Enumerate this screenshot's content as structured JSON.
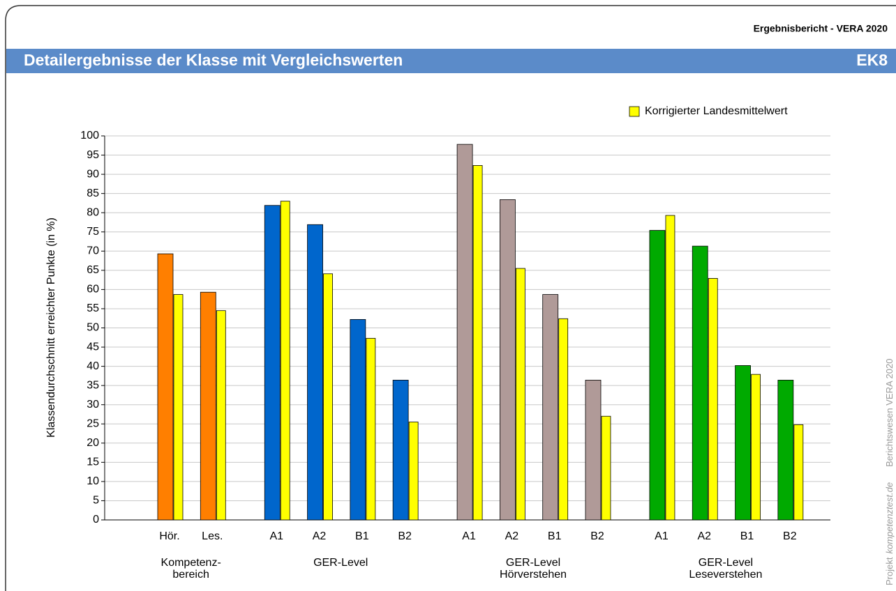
{
  "header": {
    "report": "Ergebnisbericht - VERA 2020",
    "title": "Detailergebnisse der Klasse mit Vergleichswerten",
    "code": "EK8"
  },
  "side": {
    "project": "Projekt",
    "site": "kompetenztest.de",
    "system": "Berichtswesen VERA 2020"
  },
  "chart_data": {
    "type": "bar",
    "y_label": "Klassendurchschnitt erreichter Punkte (in %)",
    "ylim": [
      0,
      100
    ],
    "yticks": [
      0,
      5,
      10,
      15,
      20,
      25,
      30,
      35,
      40,
      45,
      50,
      55,
      60,
      65,
      70,
      75,
      80,
      85,
      90,
      95,
      100
    ],
    "grid": true,
    "legend": "top-right",
    "reference": {
      "name": "Korrigierter Landesmittelwert",
      "color": "#ffff00"
    },
    "groups": [
      {
        "label": [
          "Kompetenz-",
          "bereich"
        ],
        "color": "#ff7f00",
        "categories": [
          "Hör.",
          "Les."
        ],
        "values": [
          69.3,
          59.3
        ],
        "reference": [
          58.7,
          54.5
        ]
      },
      {
        "label": [
          "GER-Level"
        ],
        "color": "#0066cc",
        "categories": [
          "A1",
          "A2",
          "B1",
          "B2"
        ],
        "values": [
          81.9,
          76.9,
          52.2,
          36.4
        ],
        "reference": [
          83.0,
          64.1,
          47.3,
          25.5
        ]
      },
      {
        "label": [
          "GER-Level",
          "Hörverstehen"
        ],
        "color": "#b09a98",
        "categories": [
          "A1",
          "A2",
          "B1",
          "B2"
        ],
        "values": [
          97.8,
          83.4,
          58.7,
          36.4
        ],
        "reference": [
          92.3,
          65.5,
          52.4,
          27.0
        ]
      },
      {
        "label": [
          "GER-Level",
          "Leseverstehen"
        ],
        "color": "#00aa00",
        "categories": [
          "A1",
          "A2",
          "B1",
          "B2"
        ],
        "values": [
          75.4,
          71.3,
          40.2,
          36.4
        ],
        "reference": [
          79.3,
          62.9,
          37.9,
          24.8
        ]
      }
    ]
  }
}
